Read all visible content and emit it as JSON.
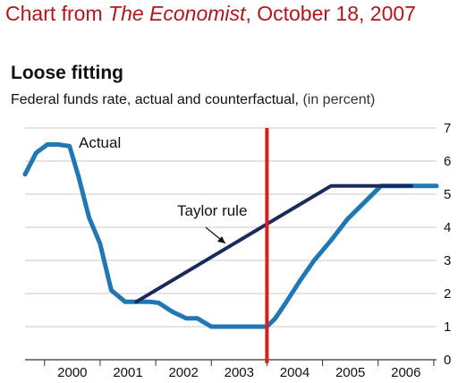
{
  "header": {
    "prefix": "Chart from ",
    "publication": "The Economist",
    "date": ", October 18, 2007"
  },
  "chart_data": {
    "type": "line",
    "title": "Loose fitting",
    "subtitle": "Federal funds rate, actual and counterfactual,",
    "subtitle_unit": "(in percent)",
    "xlabel": "",
    "ylabel": "",
    "x_ticks": [
      "2000",
      "2001",
      "2002",
      "2003",
      "2004",
      "2005",
      "2006"
    ],
    "xlim": [
      1999.6,
      2007.0
    ],
    "y_ticks": [
      0,
      1,
      2,
      3,
      4,
      5,
      6,
      7
    ],
    "ylim": [
      0,
      7
    ],
    "y_axis_position": "right",
    "grid": "horizontal",
    "series": [
      {
        "name": "Actual",
        "color": "#1f77b4",
        "x": [
          1999.6,
          1999.8,
          2000.0,
          2000.2,
          2000.4,
          2000.55,
          2000.75,
          2000.95,
          2001.15,
          2001.4,
          2001.6,
          2001.85,
          2002.0,
          2002.25,
          2002.5,
          2002.7,
          2002.95,
          2003.25,
          2003.5,
          2003.7,
          2003.95,
          2004.1,
          2004.3,
          2004.55,
          2004.8,
          2005.1,
          2005.4,
          2005.7,
          2006.0,
          2006.25,
          2006.55,
          2006.8,
          2007.0
        ],
        "y": [
          5.6,
          6.25,
          6.5,
          6.5,
          6.45,
          5.6,
          4.3,
          3.5,
          2.1,
          1.75,
          1.75,
          1.75,
          1.72,
          1.45,
          1.25,
          1.25,
          1.0,
          1.0,
          1.0,
          1.0,
          1.0,
          1.25,
          1.75,
          2.4,
          3.0,
          3.6,
          4.25,
          4.75,
          5.25,
          5.25,
          5.25,
          5.25,
          5.25
        ]
      },
      {
        "name": "Taylor rule",
        "color": "#1b2a5c",
        "x": [
          2001.6,
          2005.1,
          2006.55
        ],
        "y": [
          1.75,
          5.25,
          5.25
        ]
      }
    ],
    "marker_line": {
      "x": 2004.0,
      "color": "#e01b1b"
    }
  }
}
